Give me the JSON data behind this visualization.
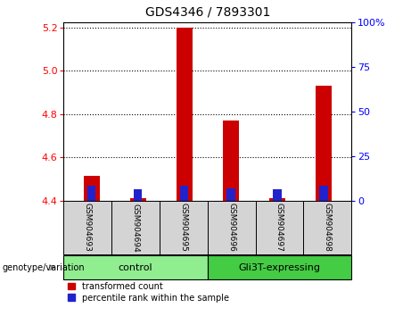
{
  "title": "GDS4346 / 7893301",
  "samples": [
    "GSM904693",
    "GSM904694",
    "GSM904695",
    "GSM904696",
    "GSM904697",
    "GSM904698"
  ],
  "red_values": [
    4.515,
    4.413,
    5.2,
    4.77,
    4.413,
    4.93
  ],
  "blue_values": [
    4.468,
    4.452,
    4.468,
    4.458,
    4.452,
    4.468
  ],
  "y_min": 4.4,
  "y_max": 5.225,
  "y_ticks": [
    4.4,
    4.6,
    4.8,
    5.0,
    5.2
  ],
  "right_y_ticks": [
    0,
    25,
    50,
    75,
    100
  ],
  "bar_color_red": "#CC0000",
  "bar_color_blue": "#2222CC",
  "bar_width": 0.35,
  "blue_bar_width": 0.18,
  "legend_red": "transformed count",
  "legend_blue": "percentile rank within the sample",
  "genotype_label": "genotype/variation",
  "group_control_color": "#90EE90",
  "group_gli3t_color": "#44CC44",
  "sample_box_color": "#d4d4d4"
}
